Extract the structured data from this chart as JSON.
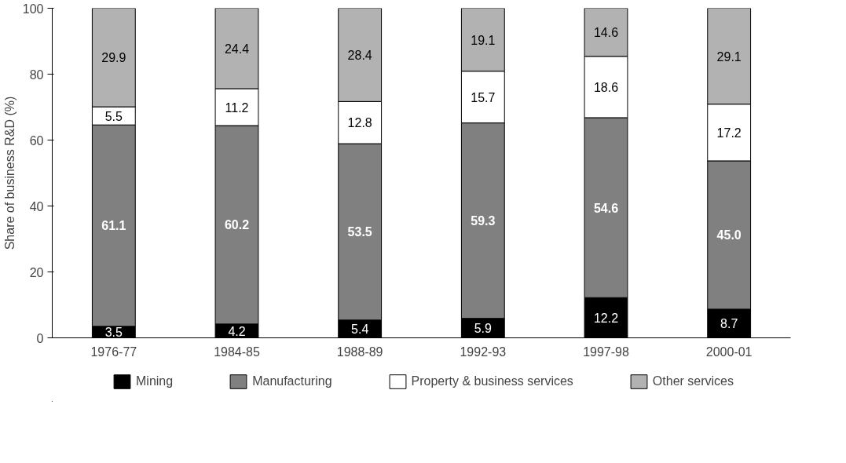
{
  "chart_data": {
    "type": "bar",
    "stacked": true,
    "ylabel": "Share of business R&D (%)",
    "categories": [
      "1976-77",
      "1984-85",
      "1988-89",
      "1992-93",
      "1997-98",
      "2000-01"
    ],
    "series": [
      {
        "name": "Mining",
        "color": "#000000",
        "values": [
          3.5,
          4.2,
          5.4,
          5.9,
          12.2,
          8.7
        ],
        "value_labels": [
          "3.5",
          "4.2",
          "5.4",
          "5.9",
          "12.2",
          "8.7"
        ]
      },
      {
        "name": "Manufacturing",
        "color": "#808080",
        "values": [
          61.1,
          60.2,
          53.5,
          59.3,
          54.6,
          45.0
        ],
        "value_labels": [
          "61.1",
          "60.2",
          "53.5",
          "59.3",
          "54.6",
          "45.0"
        ]
      },
      {
        "name": "Property & business services",
        "color": "#ffffff",
        "values": [
          5.5,
          11.2,
          12.8,
          15.7,
          18.6,
          17.2
        ],
        "value_labels": [
          "5.5",
          "11.2",
          "12.8",
          "15.7",
          "18.6",
          "17.2"
        ]
      },
      {
        "name": "Other services",
        "color": "#b2b2b2",
        "values": [
          29.9,
          24.4,
          28.4,
          19.1,
          14.6,
          29.1
        ],
        "value_labels": [
          "29.9",
          "24.4",
          "28.4",
          "19.1",
          "14.6",
          "29.1"
        ]
      }
    ],
    "ylim": [
      0,
      100
    ],
    "yticks": [
      0,
      20,
      40,
      60,
      80,
      100
    ],
    "grid": false,
    "legend": "bottom"
  }
}
